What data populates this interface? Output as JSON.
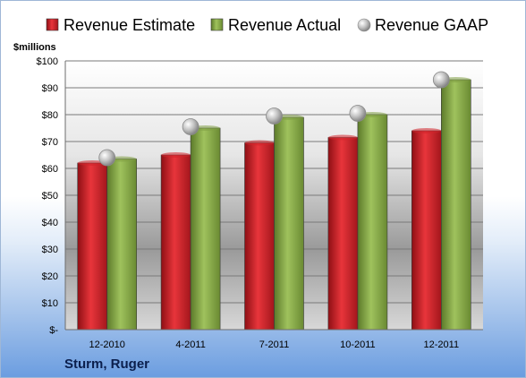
{
  "company": "Sturm, Ruger",
  "chart_data": {
    "type": "bar",
    "categories": [
      "12-2010",
      "4-2011",
      "7-2011",
      "10-2011",
      "12-2011"
    ],
    "series": [
      {
        "name": "Revenue Estimate",
        "marker": "bar",
        "color": "#d2232a",
        "values": [
          62,
          65,
          69.5,
          71.5,
          74
        ]
      },
      {
        "name": "Revenue Actual",
        "marker": "bar",
        "color": "#7f9f43",
        "values": [
          63.5,
          75,
          79,
          80,
          93
        ]
      },
      {
        "name": "Revenue GAAP",
        "marker": "point",
        "color": "#b8b8b8",
        "values": [
          64,
          75.5,
          79.5,
          80.5,
          93
        ]
      }
    ],
    "ylabel": "$millions",
    "ylim": [
      0,
      100
    ],
    "yticks": [
      "$-",
      "$10",
      "$20",
      "$30",
      "$40",
      "$50",
      "$60",
      "$70",
      "$80",
      "$90",
      "$100"
    ],
    "grid": true,
    "legend": "top"
  }
}
